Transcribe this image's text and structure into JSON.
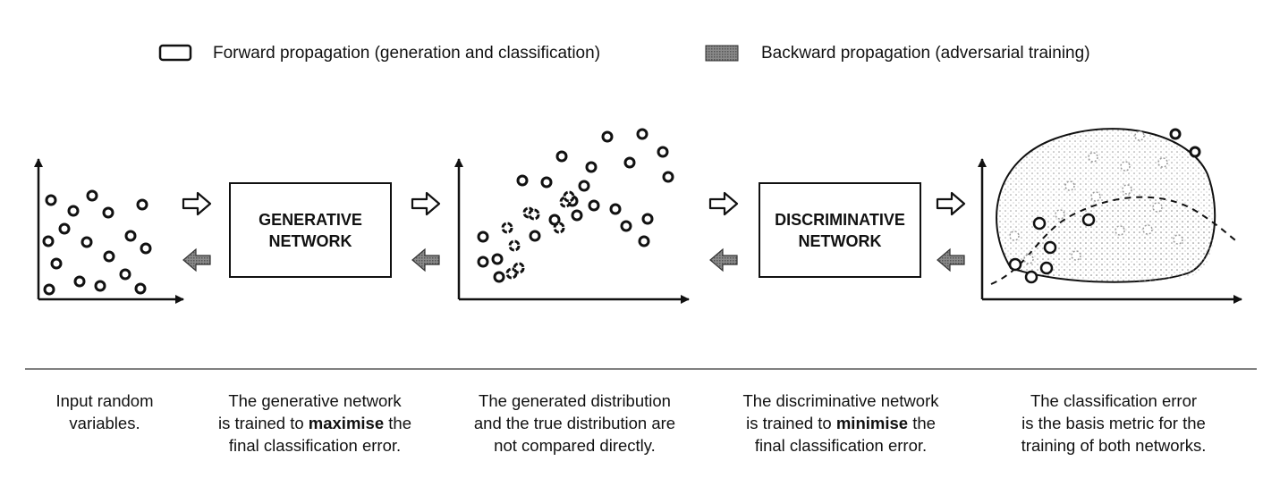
{
  "legend": {
    "forward_label": "Forward propagation (generation and classification)",
    "backward_label": "Backward propagation (adversarial training)"
  },
  "boxes": {
    "generative": {
      "line1": "GENERATIVE",
      "line2": "NETWORK"
    },
    "discriminative": {
      "line1": "DISCRIMINATIVE",
      "line2": "NETWORK"
    }
  },
  "captions": [
    {
      "lines": [
        "Input random",
        "variables."
      ]
    },
    {
      "lines": [
        "The generative network",
        "is trained to ",
        "maximise",
        " the",
        "final classification error."
      ]
    },
    {
      "lines": [
        "The generated distribution",
        "and the true distribution are",
        "not compared directly."
      ]
    },
    {
      "lines": [
        "The discriminative network",
        "is trained to ",
        "minimise",
        " the",
        "final classification error."
      ]
    },
    {
      "lines": [
        "The classification error",
        "is the basis metric for the",
        "training of both networks."
      ]
    }
  ],
  "colors": {
    "ink": "#111111",
    "backward_fill": "#7a7a7a",
    "region_dots": "#9a9a9a"
  }
}
